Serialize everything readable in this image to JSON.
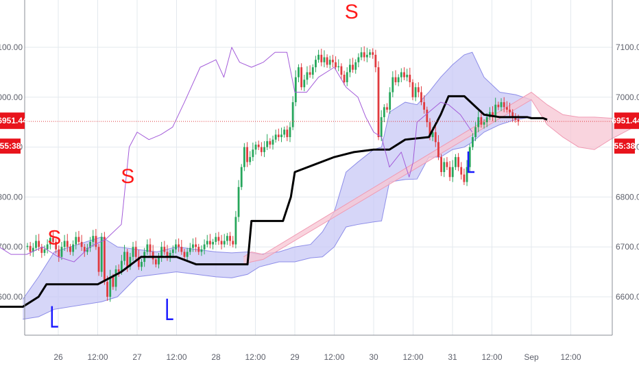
{
  "chart_data": {
    "type": "candlestick",
    "title": "",
    "xlabel": "",
    "ylabel": "",
    "ylim": [
      6530,
      7180
    ],
    "grid": true,
    "y_ticks": [
      "6600.00",
      "6700.00",
      "6800.00",
      "6900.00",
      "7000.00",
      "7100.00"
    ],
    "x_ticks": [
      "26",
      "12:00",
      "27",
      "12:00",
      "28",
      "12:00",
      "29",
      "12:00",
      "30",
      "12:00",
      "31",
      "12:00",
      "Sep",
      "12:00"
    ],
    "current_price": {
      "label": "6951.44",
      "value": 6951.44
    },
    "countdown": {
      "left": "55:38",
      "right": "55:38"
    },
    "colors": {
      "up": "#26a65b",
      "down": "#e03a3e",
      "cloud_bull": "#c8c8f5",
      "cloud_bear": "#f7c6d3",
      "kijun": "#000000",
      "chikou": "#a35bd9",
      "sell_signal": "#ff1a1a",
      "buy_signal": "#1a1aff"
    },
    "signals": [
      {
        "label": "S",
        "x": 25.95,
        "y": 6705
      },
      {
        "label": "S",
        "x": 26.88,
        "y": 6828
      },
      {
        "label": "S",
        "x": 29.72,
        "y": 7158
      },
      {
        "label": "L",
        "x": 25.92,
        "y": 6540
      },
      {
        "label": "L",
        "x": 27.38,
        "y": 6555
      },
      {
        "label": "L",
        "x": 31.2,
        "y": 6850
      }
    ],
    "series": [
      {
        "name": "",
        "type": "kijun_line",
        "points": [
          [
            25.0,
            6580
          ],
          [
            25.3,
            6580
          ],
          [
            25.55,
            6580
          ],
          [
            25.75,
            6600
          ],
          [
            25.85,
            6625
          ],
          [
            26.1,
            6625
          ],
          [
            26.35,
            6625
          ],
          [
            26.5,
            6625
          ],
          [
            26.8,
            6650
          ],
          [
            27.05,
            6680
          ],
          [
            27.5,
            6680
          ],
          [
            27.75,
            6665
          ],
          [
            28.0,
            6665
          ],
          [
            28.4,
            6665
          ],
          [
            28.45,
            6752
          ],
          [
            28.65,
            6752
          ],
          [
            28.85,
            6752
          ],
          [
            28.95,
            6800
          ],
          [
            29.0,
            6850
          ],
          [
            29.25,
            6865
          ],
          [
            29.5,
            6880
          ],
          [
            29.75,
            6890
          ],
          [
            30.0,
            6895
          ],
          [
            30.2,
            6895
          ],
          [
            30.4,
            6915
          ],
          [
            30.7,
            6920
          ],
          [
            30.85,
            6965
          ],
          [
            30.95,
            7002
          ],
          [
            31.15,
            7002
          ],
          [
            31.4,
            6965
          ],
          [
            31.6,
            6960
          ],
          [
            31.95,
            6960
          ],
          [
            32.0,
            6958
          ],
          [
            32.15,
            6958
          ],
          [
            32.2,
            6955
          ]
        ]
      },
      {
        "name": "",
        "type": "chikou_line",
        "points": [
          [
            25.0,
            6680
          ],
          [
            25.2,
            6705
          ],
          [
            25.4,
            6685
          ],
          [
            25.6,
            6685
          ],
          [
            25.8,
            6700
          ],
          [
            26.0,
            6680
          ],
          [
            26.2,
            6670
          ],
          [
            26.4,
            6700
          ],
          [
            26.6,
            6715
          ],
          [
            26.8,
            6745
          ],
          [
            26.9,
            6900
          ],
          [
            27.0,
            6930
          ],
          [
            27.15,
            6915
          ],
          [
            27.3,
            6925
          ],
          [
            27.45,
            6940
          ],
          [
            27.6,
            6990
          ],
          [
            27.8,
            7060
          ],
          [
            28.0,
            7075
          ],
          [
            28.1,
            7040
          ],
          [
            28.2,
            7100
          ],
          [
            28.3,
            7070
          ],
          [
            28.45,
            7060
          ],
          [
            28.6,
            7070
          ],
          [
            28.75,
            7090
          ],
          [
            28.9,
            7090
          ],
          [
            29.0,
            7010
          ],
          [
            29.15,
            7010
          ],
          [
            29.3,
            7040
          ],
          [
            29.5,
            7060
          ],
          [
            29.65,
            7020
          ],
          [
            29.8,
            7000
          ],
          [
            29.9,
            6960
          ],
          [
            30.0,
            6930
          ],
          [
            30.1,
            6920
          ],
          [
            30.2,
            6860
          ],
          [
            30.35,
            6890
          ],
          [
            30.45,
            6840
          ],
          [
            30.5,
            6870
          ],
          [
            30.55,
            6950
          ],
          [
            30.7,
            6970
          ],
          [
            30.85,
            6990
          ],
          [
            30.95,
            6985
          ],
          [
            31.1,
            6965
          ],
          [
            31.25,
            6930
          ]
        ]
      },
      {
        "name": "",
        "type": "cloud_bull",
        "upper": [
          [
            25.55,
            6595
          ],
          [
            25.75,
            6640
          ],
          [
            25.95,
            6690
          ],
          [
            26.15,
            6700
          ],
          [
            26.35,
            6710
          ],
          [
            26.55,
            6720
          ],
          [
            26.75,
            6700
          ],
          [
            27.0,
            6695
          ],
          [
            27.25,
            6690
          ],
          [
            27.5,
            6700
          ],
          [
            27.75,
            6695
          ],
          [
            28.0,
            6690
          ],
          [
            28.2,
            6688
          ],
          [
            28.4,
            6690
          ],
          [
            28.55,
            6685
          ],
          [
            28.8,
            6690
          ],
          [
            29.0,
            6700
          ],
          [
            29.2,
            6705
          ],
          [
            29.35,
            6730
          ],
          [
            29.5,
            6770
          ],
          [
            29.65,
            6850
          ],
          [
            29.8,
            6870
          ],
          [
            30.0,
            6895
          ],
          [
            30.1,
            6900
          ],
          [
            30.2,
            6970
          ],
          [
            30.4,
            6990
          ],
          [
            30.55,
            6985
          ],
          [
            30.7,
            7010
          ],
          [
            30.85,
            7040
          ],
          [
            31.0,
            7065
          ],
          [
            31.15,
            7085
          ],
          [
            31.25,
            7090
          ],
          [
            31.4,
            7040
          ],
          [
            31.6,
            7010
          ],
          [
            31.8,
            7005
          ],
          [
            32.0,
            6995
          ]
        ],
        "lower": [
          [
            25.55,
            6555
          ],
          [
            25.75,
            6560
          ],
          [
            25.95,
            6575
          ],
          [
            26.15,
            6580
          ],
          [
            26.35,
            6585
          ],
          [
            26.55,
            6590
          ],
          [
            26.75,
            6600
          ],
          [
            27.0,
            6640
          ],
          [
            27.25,
            6645
          ],
          [
            27.5,
            6650
          ],
          [
            27.75,
            6645
          ],
          [
            28.0,
            6640
          ],
          [
            28.2,
            6638
          ],
          [
            28.4,
            6645
          ],
          [
            28.55,
            6660
          ],
          [
            28.8,
            6670
          ],
          [
            29.0,
            6670
          ],
          [
            29.2,
            6678
          ],
          [
            29.35,
            6680
          ],
          [
            29.5,
            6700
          ],
          [
            29.65,
            6740
          ],
          [
            29.8,
            6745
          ],
          [
            30.0,
            6750
          ],
          [
            30.1,
            6752
          ],
          [
            30.2,
            6830
          ],
          [
            30.4,
            6835
          ],
          [
            30.55,
            6836
          ],
          [
            30.7,
            6880
          ],
          [
            30.85,
            6880
          ],
          [
            31.0,
            6895
          ],
          [
            31.15,
            6900
          ],
          [
            31.25,
            6910
          ],
          [
            31.4,
            6930
          ],
          [
            31.6,
            6945
          ],
          [
            31.8,
            6955
          ],
          [
            32.0,
            6960
          ]
        ]
      },
      {
        "name": "",
        "type": "cloud_bear",
        "upper": [
          [
            28.35,
            6680
          ],
          [
            28.45,
            6690
          ],
          [
            28.6,
            6685
          ],
          [
            32.0,
            7010
          ],
          [
            32.2,
            6985
          ],
          [
            32.4,
            6965
          ],
          [
            32.6,
            6960
          ],
          [
            32.8,
            6960
          ],
          [
            33.0,
            6958
          ],
          [
            33.3,
            6958
          ]
        ],
        "lower": [
          [
            28.35,
            6665
          ],
          [
            28.45,
            6670
          ],
          [
            28.6,
            6675
          ],
          [
            32.0,
            6995
          ],
          [
            32.2,
            6945
          ],
          [
            32.4,
            6920
          ],
          [
            32.6,
            6900
          ],
          [
            32.8,
            6895
          ],
          [
            33.0,
            6915
          ],
          [
            33.3,
            6940
          ]
        ]
      }
    ],
    "candles": [
      [
        6700,
        6702
      ],
      [
        6702,
        6690
      ],
      [
        6690,
        6698
      ],
      [
        6698,
        6712
      ],
      [
        6712,
        6700
      ],
      [
        6700,
        6688
      ],
      [
        6688,
        6695
      ],
      [
        6695,
        6705
      ],
      [
        6705,
        6718
      ],
      [
        6718,
        6710
      ],
      [
        6710,
        6695
      ],
      [
        6695,
        6680
      ],
      [
        6680,
        6700
      ],
      [
        6700,
        6712
      ],
      [
        6712,
        6700
      ],
      [
        6700,
        6690
      ],
      [
        6690,
        6705
      ],
      [
        6705,
        6720
      ],
      [
        6720,
        6710
      ],
      [
        6710,
        6700
      ],
      [
        6700,
        6690
      ],
      [
        6690,
        6698
      ],
      [
        6698,
        6710
      ],
      [
        6710,
        6722
      ],
      [
        6722,
        6700
      ],
      [
        6700,
        6650
      ],
      [
        6650,
        6720
      ],
      [
        6720,
        6630
      ],
      [
        6630,
        6600
      ],
      [
        6600,
        6640
      ],
      [
        6640,
        6620
      ],
      [
        6620,
        6655
      ],
      [
        6655,
        6650
      ],
      [
        6650,
        6672
      ],
      [
        6672,
        6690
      ],
      [
        6690,
        6660
      ],
      [
        6660,
        6680
      ],
      [
        6680,
        6700
      ],
      [
        6700,
        6680
      ],
      [
        6680,
        6660
      ],
      [
        6660,
        6670
      ],
      [
        6670,
        6690
      ],
      [
        6690,
        6705
      ],
      [
        6705,
        6690
      ],
      [
        6690,
        6675
      ],
      [
        6675,
        6665
      ],
      [
        6665,
        6680
      ],
      [
        6680,
        6700
      ],
      [
        6700,
        6690
      ],
      [
        6690,
        6680
      ],
      [
        6680,
        6688
      ],
      [
        6688,
        6695
      ],
      [
        6695,
        6705
      ],
      [
        6705,
        6700
      ],
      [
        6700,
        6690
      ],
      [
        6690,
        6680
      ],
      [
        6680,
        6690
      ],
      [
        6690,
        6698
      ],
      [
        6698,
        6705
      ],
      [
        6705,
        6700
      ],
      [
        6700,
        6690
      ],
      [
        6690,
        6695
      ],
      [
        6695,
        6705
      ],
      [
        6705,
        6712
      ],
      [
        6712,
        6705
      ],
      [
        6705,
        6710
      ],
      [
        6710,
        6720
      ],
      [
        6720,
        6712
      ],
      [
        6712,
        6705
      ],
      [
        6705,
        6712
      ],
      [
        6712,
        6722
      ],
      [
        6722,
        6712
      ],
      [
        6712,
        6705
      ],
      [
        6705,
        6760
      ],
      [
        6760,
        6820
      ],
      [
        6820,
        6860
      ],
      [
        6860,
        6900
      ],
      [
        6900,
        6870
      ],
      [
        6870,
        6880
      ],
      [
        6880,
        6895
      ],
      [
        6895,
        6905
      ],
      [
        6905,
        6900
      ],
      [
        6900,
        6890
      ],
      [
        6890,
        6900
      ],
      [
        6900,
        6912
      ],
      [
        6912,
        6905
      ],
      [
        6905,
        6915
      ],
      [
        6915,
        6925
      ],
      [
        6925,
        6920
      ],
      [
        6920,
        6925
      ],
      [
        6925,
        6935
      ],
      [
        6935,
        6920
      ],
      [
        6920,
        6940
      ],
      [
        6940,
        6990
      ],
      [
        6990,
        7040
      ],
      [
        7040,
        7060
      ],
      [
        7060,
        7020
      ],
      [
        7020,
        7035
      ],
      [
        7035,
        7050
      ],
      [
        7050,
        7045
      ],
      [
        7045,
        7060
      ],
      [
        7060,
        7075
      ],
      [
        7075,
        7085
      ],
      [
        7085,
        7070
      ],
      [
        7070,
        7080
      ],
      [
        7080,
        7065
      ],
      [
        7065,
        7075
      ],
      [
        7075,
        7070
      ],
      [
        7070,
        7060
      ],
      [
        7060,
        7062
      ],
      [
        7062,
        7045
      ],
      [
        7045,
        7030
      ],
      [
        7030,
        7050
      ],
      [
        7050,
        7065
      ],
      [
        7065,
        7055
      ],
      [
        7055,
        7070
      ],
      [
        7070,
        7080
      ],
      [
        7080,
        7090
      ],
      [
        7090,
        7080
      ],
      [
        7080,
        7085
      ],
      [
        7085,
        7090
      ],
      [
        7090,
        7085
      ],
      [
        7085,
        7060
      ],
      [
        7060,
        6920
      ],
      [
        6920,
        6960
      ],
      [
        6960,
        6980
      ],
      [
        6980,
        6975
      ],
      [
        6975,
        7010
      ],
      [
        7010,
        7040
      ],
      [
        7040,
        7030
      ],
      [
        7030,
        7040
      ],
      [
        7040,
        7050
      ],
      [
        7050,
        7040
      ],
      [
        7040,
        7045
      ],
      [
        7045,
        7030
      ],
      [
        7030,
        7000
      ],
      [
        7000,
        7020
      ],
      [
        7020,
        7010
      ],
      [
        7010,
        6990
      ],
      [
        6990,
        6975
      ],
      [
        6975,
        6950
      ],
      [
        6950,
        6920
      ],
      [
        6920,
        6930
      ],
      [
        6930,
        6910
      ],
      [
        6910,
        6880
      ],
      [
        6880,
        6850
      ],
      [
        6850,
        6870
      ],
      [
        6870,
        6860
      ],
      [
        6860,
        6840
      ],
      [
        6840,
        6860
      ],
      [
        6860,
        6880
      ],
      [
        6880,
        6860
      ],
      [
        6860,
        6845
      ],
      [
        6845,
        6830
      ],
      [
        6830,
        6860
      ],
      [
        6860,
        6900
      ],
      [
        6900,
        6920
      ],
      [
        6920,
        6940
      ],
      [
        6940,
        6960
      ],
      [
        6960,
        6945
      ],
      [
        6945,
        6950
      ],
      [
        6950,
        6960
      ],
      [
        6960,
        6970
      ],
      [
        6970,
        6960
      ],
      [
        6960,
        6985
      ],
      [
        6985,
        6980
      ],
      [
        6980,
        6990
      ],
      [
        6990,
        6980
      ],
      [
        6980,
        6975
      ],
      [
        6975,
        6970
      ],
      [
        6970,
        6960
      ],
      [
        6960,
        6955
      ],
      [
        6955,
        6951
      ]
    ]
  }
}
